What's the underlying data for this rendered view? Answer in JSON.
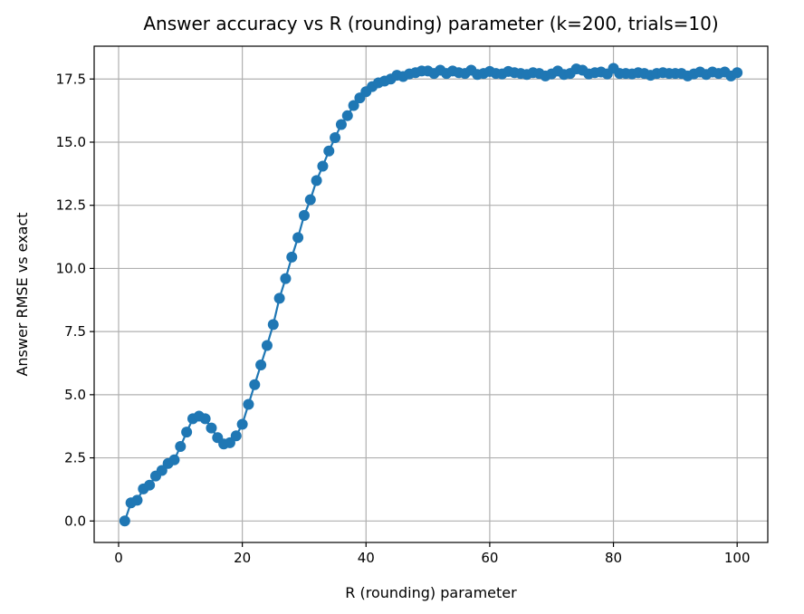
{
  "chart_data": {
    "type": "line",
    "title": "Answer accuracy vs R (rounding) parameter (k=200, trials=10)",
    "xlabel": "R (rounding) parameter",
    "ylabel": "Answer RMSE vs exact",
    "xlim": [
      -3.95,
      104.95
    ],
    "ylim": [
      -0.85,
      18.8
    ],
    "xticks": [
      0,
      20,
      40,
      60,
      80,
      100
    ],
    "xtick_labels": [
      "0",
      "20",
      "40",
      "60",
      "80",
      "100"
    ],
    "yticks": [
      0.0,
      2.5,
      5.0,
      7.5,
      10.0,
      12.5,
      15.0,
      17.5
    ],
    "ytick_labels": [
      "0.0",
      "2.5",
      "5.0",
      "7.5",
      "10.0",
      "12.5",
      "15.0",
      "17.5"
    ],
    "grid": true,
    "series": [
      {
        "color": "#1f77b4",
        "marker": "circle",
        "x": [
          1,
          2,
          3,
          4,
          5,
          6,
          7,
          8,
          9,
          10,
          11,
          12,
          13,
          14,
          15,
          16,
          17,
          18,
          19,
          20,
          21,
          22,
          23,
          24,
          25,
          26,
          27,
          28,
          29,
          30,
          31,
          32,
          33,
          34,
          35,
          36,
          37,
          38,
          39,
          40,
          41,
          42,
          43,
          44,
          45,
          46,
          47,
          48,
          49,
          50,
          51,
          52,
          53,
          54,
          55,
          56,
          57,
          58,
          59,
          60,
          61,
          62,
          63,
          64,
          65,
          66,
          67,
          68,
          69,
          70,
          71,
          72,
          73,
          74,
          75,
          76,
          77,
          78,
          79,
          80,
          81,
          82,
          83,
          84,
          85,
          86,
          87,
          88,
          89,
          90,
          91,
          92,
          93,
          94,
          95,
          96,
          97,
          98,
          99,
          100
        ],
        "y": [
          0.0,
          0.72,
          0.82,
          1.27,
          1.42,
          1.78,
          2.0,
          2.28,
          2.42,
          2.95,
          3.52,
          4.05,
          4.15,
          4.05,
          3.68,
          3.3,
          3.05,
          3.1,
          3.37,
          3.83,
          4.62,
          5.4,
          6.18,
          6.95,
          7.78,
          8.82,
          9.6,
          10.45,
          11.22,
          12.1,
          12.72,
          13.48,
          14.05,
          14.65,
          15.18,
          15.7,
          16.05,
          16.45,
          16.75,
          17.0,
          17.2,
          17.35,
          17.42,
          17.5,
          17.65,
          17.6,
          17.7,
          17.75,
          17.82,
          17.82,
          17.72,
          17.85,
          17.72,
          17.82,
          17.75,
          17.72,
          17.85,
          17.68,
          17.72,
          17.8,
          17.72,
          17.7,
          17.8,
          17.75,
          17.72,
          17.68,
          17.75,
          17.72,
          17.62,
          17.7,
          17.82,
          17.68,
          17.72,
          17.9,
          17.85,
          17.7,
          17.75,
          17.78,
          17.7,
          17.92,
          17.72,
          17.72,
          17.7,
          17.75,
          17.72,
          17.65,
          17.72,
          17.75,
          17.72,
          17.72,
          17.72,
          17.62,
          17.7,
          17.78,
          17.68,
          17.78,
          17.72,
          17.78,
          17.62,
          17.75
        ]
      }
    ]
  }
}
